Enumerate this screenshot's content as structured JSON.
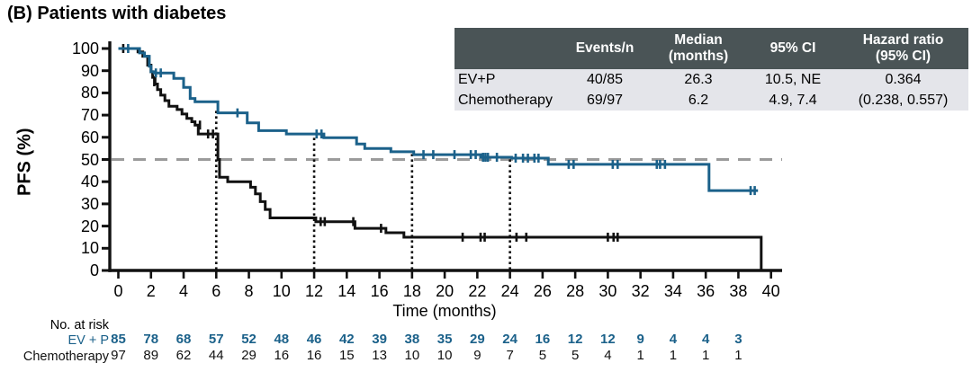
{
  "title": "(B) Patients with diabetes",
  "colors": {
    "evp_blue": "#1b618a",
    "chemo_black": "#111111",
    "median_dash_gray": "#9b9b9b",
    "table_header_bg": "#4a5456",
    "table_row_bg": "#e4e5ea"
  },
  "summary_table": {
    "columns": [
      "",
      "Events/n",
      "Median\n(months)",
      "95% CI",
      "Hazard ratio\n(95% CI)"
    ],
    "rows": [
      [
        "EV+P",
        "40/85",
        "26.3",
        "10.5, NE",
        "0.364"
      ],
      [
        "Chemotherapy",
        "69/97",
        "6.2",
        "4.9, 7.4",
        "(0.238, 0.557)"
      ]
    ]
  },
  "chart_data": {
    "type": "line",
    "subtype": "kaplan-meier-step",
    "title": "(B) Patients with diabetes",
    "xlabel": "Time (months)",
    "ylabel": "PFS (%)",
    "xlim": [
      0,
      40
    ],
    "ylim": [
      0,
      100
    ],
    "xticks": [
      0,
      2,
      4,
      6,
      8,
      10,
      12,
      14,
      16,
      18,
      20,
      22,
      24,
      26,
      28,
      30,
      32,
      34,
      36,
      38,
      40
    ],
    "yticks": [
      0,
      10,
      20,
      30,
      40,
      50,
      60,
      70,
      80,
      90,
      100
    ],
    "grid": false,
    "reference_lines": {
      "horizontal_dashed_at_pct": 50,
      "vertical_dotted_at_months": [
        6,
        12,
        18,
        24
      ],
      "vertical_dotted_top_pct": [
        72,
        61.5,
        53.5,
        50.8
      ]
    },
    "series": [
      {
        "name": "EV+P",
        "color": "#1b618a",
        "steps": [
          [
            0,
            100
          ],
          [
            1.3,
            100
          ],
          [
            1.3,
            98
          ],
          [
            1.6,
            98
          ],
          [
            1.6,
            96.5
          ],
          [
            1.9,
            96.5
          ],
          [
            1.9,
            92
          ],
          [
            2.0,
            92
          ],
          [
            2.0,
            89.5
          ],
          [
            2.2,
            89.5
          ],
          [
            2.2,
            89
          ],
          [
            3.4,
            89
          ],
          [
            3.4,
            86.5
          ],
          [
            4.0,
            86.5
          ],
          [
            4.0,
            82.5
          ],
          [
            4.4,
            82.5
          ],
          [
            4.4,
            77.5
          ],
          [
            4.7,
            77.5
          ],
          [
            4.7,
            76
          ],
          [
            6.1,
            76
          ],
          [
            6.1,
            71
          ],
          [
            7.9,
            71
          ],
          [
            7.9,
            66.5
          ],
          [
            8.6,
            66.5
          ],
          [
            8.6,
            63
          ],
          [
            10.3,
            63
          ],
          [
            10.3,
            61.5
          ],
          [
            12.6,
            61.5
          ],
          [
            12.6,
            59.8
          ],
          [
            14.6,
            59.8
          ],
          [
            14.6,
            57
          ],
          [
            15.1,
            57
          ],
          [
            15.1,
            55
          ],
          [
            16.7,
            55
          ],
          [
            16.7,
            53.5
          ],
          [
            18.1,
            53.5
          ],
          [
            18.1,
            52.2
          ],
          [
            22.2,
            52.2
          ],
          [
            22.2,
            51
          ],
          [
            24.1,
            51
          ],
          [
            24.1,
            50.6
          ],
          [
            26.35,
            50.6
          ],
          [
            26.35,
            47.8
          ],
          [
            36.2,
            47.8
          ],
          [
            36.2,
            36
          ],
          [
            39.2,
            36
          ]
        ],
        "censors": [
          [
            0.6,
            100
          ],
          [
            2.3,
            89
          ],
          [
            2.6,
            89
          ],
          [
            7.3,
            71
          ],
          [
            12.15,
            61.5
          ],
          [
            12.45,
            61.5
          ],
          [
            18.7,
            52.2
          ],
          [
            19.3,
            52.2
          ],
          [
            20.6,
            52.2
          ],
          [
            21.6,
            52.2
          ],
          [
            21.9,
            52.2
          ],
          [
            22.35,
            51
          ],
          [
            22.5,
            51
          ],
          [
            22.65,
            51
          ],
          [
            23.2,
            51
          ],
          [
            24.35,
            50.6
          ],
          [
            24.8,
            50.6
          ],
          [
            25.1,
            50.6
          ],
          [
            25.5,
            50.6
          ],
          [
            25.75,
            50.6
          ],
          [
            27.6,
            47.8
          ],
          [
            27.9,
            47.8
          ],
          [
            30.3,
            47.8
          ],
          [
            30.6,
            47.8
          ],
          [
            33.0,
            47.8
          ],
          [
            33.2,
            47.8
          ],
          [
            33.5,
            47.8
          ],
          [
            38.75,
            36
          ],
          [
            39.0,
            36
          ]
        ]
      },
      {
        "name": "Chemotherapy",
        "color": "#111111",
        "steps": [
          [
            0,
            100
          ],
          [
            1.2,
            100
          ],
          [
            1.2,
            98.5
          ],
          [
            1.5,
            98.5
          ],
          [
            1.5,
            96.5
          ],
          [
            1.8,
            96.5
          ],
          [
            1.8,
            92.5
          ],
          [
            2.0,
            92.5
          ],
          [
            2.0,
            89.5
          ],
          [
            2.1,
            89.5
          ],
          [
            2.1,
            87
          ],
          [
            2.25,
            87
          ],
          [
            2.25,
            84
          ],
          [
            2.4,
            84
          ],
          [
            2.4,
            81.5
          ],
          [
            2.6,
            81.5
          ],
          [
            2.6,
            79
          ],
          [
            2.85,
            79
          ],
          [
            2.85,
            76.5
          ],
          [
            3.1,
            76.5
          ],
          [
            3.1,
            74
          ],
          [
            3.6,
            74
          ],
          [
            3.6,
            72.5
          ],
          [
            3.9,
            72.5
          ],
          [
            3.9,
            70.5
          ],
          [
            4.2,
            70.5
          ],
          [
            4.2,
            68.5
          ],
          [
            4.5,
            68.5
          ],
          [
            4.5,
            67
          ],
          [
            4.7,
            67
          ],
          [
            4.7,
            65.5
          ],
          [
            4.9,
            65.5
          ],
          [
            4.9,
            61.5
          ],
          [
            6.1,
            61.5
          ],
          [
            6.1,
            50
          ],
          [
            6.2,
            50
          ],
          [
            6.2,
            42
          ],
          [
            6.7,
            42
          ],
          [
            6.7,
            40
          ],
          [
            8.1,
            40
          ],
          [
            8.1,
            37.5
          ],
          [
            8.4,
            37.5
          ],
          [
            8.4,
            34.5
          ],
          [
            8.7,
            34.5
          ],
          [
            8.7,
            31
          ],
          [
            9.0,
            31
          ],
          [
            9.0,
            27.5
          ],
          [
            9.3,
            27.5
          ],
          [
            9.3,
            23.7
          ],
          [
            12.1,
            23.7
          ],
          [
            12.1,
            22
          ],
          [
            14.5,
            22
          ],
          [
            14.5,
            19
          ],
          [
            16.4,
            19
          ],
          [
            16.4,
            17
          ],
          [
            17.5,
            17
          ],
          [
            17.5,
            15
          ],
          [
            39.4,
            15
          ],
          [
            39.4,
            0
          ]
        ],
        "censors": [
          [
            0.3,
            100
          ],
          [
            2.2,
            85
          ],
          [
            5.0,
            65.5
          ],
          [
            5.5,
            61.5
          ],
          [
            5.8,
            61.5
          ],
          [
            12.4,
            22
          ],
          [
            12.65,
            22
          ],
          [
            14.4,
            22
          ],
          [
            16.1,
            19
          ],
          [
            21.1,
            15
          ],
          [
            22.2,
            15
          ],
          [
            22.45,
            15
          ],
          [
            24.4,
            15
          ],
          [
            25.0,
            15
          ],
          [
            30.0,
            15
          ],
          [
            30.35,
            15
          ],
          [
            30.6,
            15
          ]
        ]
      }
    ]
  },
  "risk_table": {
    "heading": "No. at risk",
    "times": [
      0,
      2,
      4,
      6,
      8,
      10,
      12,
      14,
      16,
      18,
      20,
      22,
      24,
      26,
      28,
      30,
      32,
      34,
      36,
      38
    ],
    "rows": [
      {
        "label": "EV + P",
        "color": "#1b618a",
        "bold_values": true,
        "values": [
          85,
          78,
          68,
          57,
          52,
          48,
          46,
          42,
          39,
          38,
          35,
          29,
          24,
          16,
          12,
          12,
          9,
          4,
          4,
          3
        ]
      },
      {
        "label": "Chemotherapy",
        "color": "#111111",
        "bold_values": false,
        "values": [
          97,
          89,
          62,
          44,
          29,
          16,
          16,
          15,
          13,
          10,
          10,
          9,
          7,
          5,
          5,
          4,
          1,
          1,
          1,
          1
        ]
      }
    ]
  }
}
